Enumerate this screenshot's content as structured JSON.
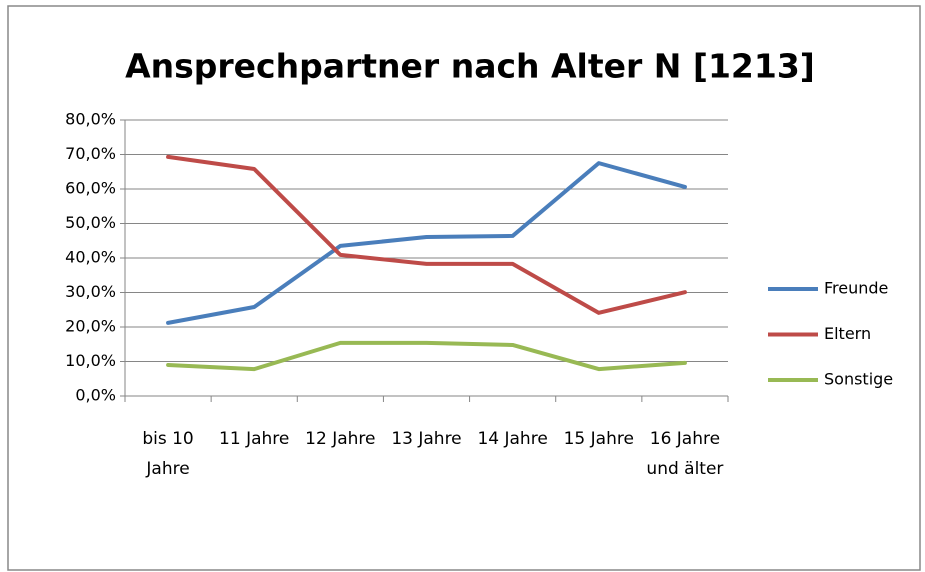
{
  "chart_data": {
    "type": "line",
    "title": "Ansprechpartner nach Alter N [1213]",
    "categories": [
      "bis 10 Jahre",
      "11 Jahre",
      "12 Jahre",
      "13 Jahre",
      "14 Jahre",
      "15 Jahre",
      "16 Jahre und älter"
    ],
    "series": [
      {
        "name": "Freunde",
        "color": "#4a7ebb",
        "values": [
          21.2,
          25.8,
          43.5,
          46.1,
          46.4,
          67.5,
          60.6
        ]
      },
      {
        "name": "Eltern",
        "color": "#be4b48",
        "values": [
          69.3,
          65.8,
          40.9,
          38.3,
          38.3,
          24.1,
          30.1
        ]
      },
      {
        "name": "Sonstige",
        "color": "#98b954",
        "values": [
          9.0,
          7.8,
          15.4,
          15.4,
          14.8,
          7.8,
          9.6
        ]
      }
    ],
    "ylim": [
      0,
      80
    ],
    "yticks": [
      {
        "value": 0,
        "label": "0,0%"
      },
      {
        "value": 10,
        "label": "10,0%"
      },
      {
        "value": 20,
        "label": "20,0%"
      },
      {
        "value": 30,
        "label": "30,0%"
      },
      {
        "value": 40,
        "label": "40,0%"
      },
      {
        "value": 50,
        "label": "50,0%"
      },
      {
        "value": 60,
        "label": "60,0%"
      },
      {
        "value": 70,
        "label": "70,0%"
      },
      {
        "value": 80,
        "label": "80,0%"
      }
    ],
    "grid": true,
    "legend": "right"
  }
}
